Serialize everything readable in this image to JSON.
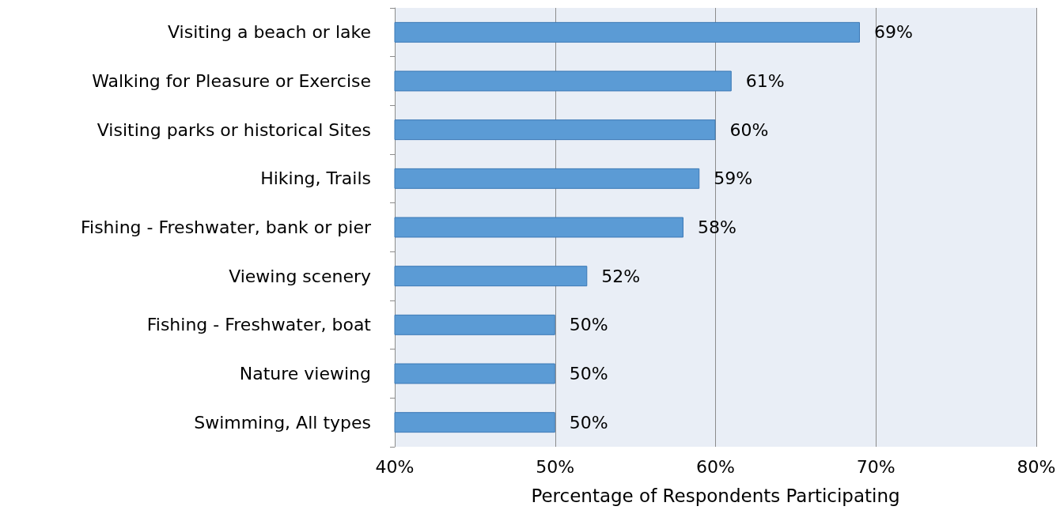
{
  "chart_data": {
    "type": "bar",
    "orientation": "horizontal",
    "categories": [
      "Visiting a beach or lake",
      "Walking for Pleasure or Exercise",
      "Visiting parks or historical Sites",
      "Hiking, Trails",
      "Fishing - Freshwater, bank or pier",
      "Viewing scenery",
      "Fishing - Freshwater, boat",
      "Nature viewing",
      "Swimming, All types"
    ],
    "values": [
      69,
      61,
      60,
      59,
      58,
      52,
      50,
      50,
      50
    ],
    "value_labels": [
      "69%",
      "61%",
      "60%",
      "59%",
      "58%",
      "52%",
      "50%",
      "50%",
      "50%"
    ],
    "color": "#5b9bd5",
    "xlabel": "Percentage of Respondents Participating",
    "xlim": [
      40,
      80
    ],
    "xticks": [
      {
        "value": 40,
        "label": "40%"
      },
      {
        "value": 50,
        "label": "50%"
      },
      {
        "value": 60,
        "label": "60%"
      },
      {
        "value": 70,
        "label": "70%"
      },
      {
        "value": 80,
        "label": "80%"
      }
    ],
    "grid": "x"
  }
}
